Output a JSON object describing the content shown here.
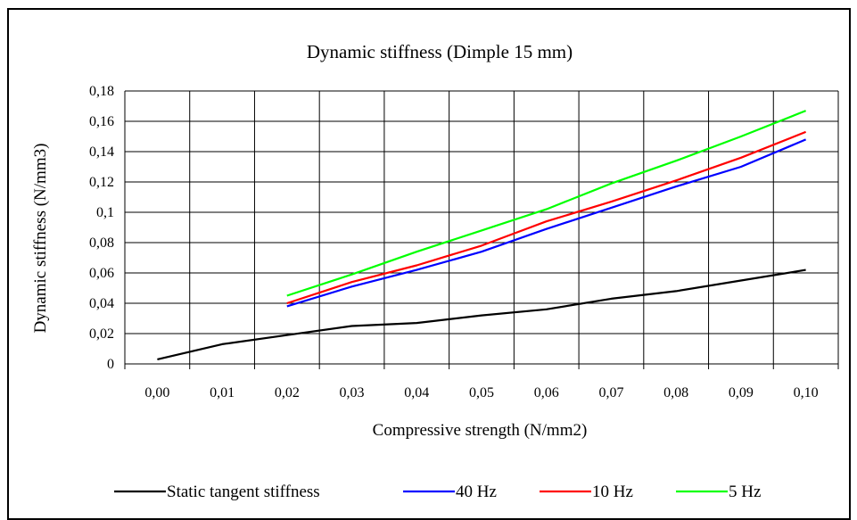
{
  "chart_data": {
    "type": "line",
    "title": "Dynamic stiffness (Dimple 15 mm)",
    "xlabel": "Compressive strength (N/mm2)",
    "ylabel": "Dynamic stiffness (N/mm3)",
    "x_categories": [
      "0,00",
      "0,01",
      "0,02",
      "0,03",
      "0,04",
      "0,05",
      "0,06",
      "0,07",
      "0,08",
      "0,09",
      "0,10"
    ],
    "x_values": [
      0.0,
      0.01,
      0.02,
      0.03,
      0.04,
      0.05,
      0.06,
      0.07,
      0.08,
      0.09,
      0.1
    ],
    "y_ticks": [
      "0",
      "0,02",
      "0,04",
      "0,06",
      "0,08",
      "0,1",
      "0,12",
      "0,14",
      "0,16",
      "0,18"
    ],
    "ylim": [
      0,
      0.18
    ],
    "grid": true,
    "legend_position": "bottom",
    "series": [
      {
        "name": "Static tangent stiffness",
        "color": "#000000",
        "x": [
          0.0,
          0.01,
          0.02,
          0.03,
          0.04,
          0.05,
          0.06,
          0.07,
          0.08,
          0.09,
          0.1
        ],
        "y": [
          0.003,
          0.013,
          0.019,
          0.025,
          0.027,
          0.032,
          0.036,
          0.043,
          0.048,
          0.055,
          0.062
        ]
      },
      {
        "name": "40 Hz",
        "color": "#0000ff",
        "x": [
          0.02,
          0.03,
          0.04,
          0.05,
          0.06,
          0.07,
          0.08,
          0.09,
          0.1
        ],
        "y": [
          0.038,
          0.051,
          0.062,
          0.074,
          0.089,
          0.103,
          0.117,
          0.13,
          0.148
        ]
      },
      {
        "name": "10 Hz",
        "color": "#ff0000",
        "x": [
          0.02,
          0.03,
          0.04,
          0.05,
          0.06,
          0.07,
          0.08,
          0.09,
          0.1
        ],
        "y": [
          0.04,
          0.054,
          0.065,
          0.078,
          0.094,
          0.107,
          0.121,
          0.136,
          0.153
        ]
      },
      {
        "name": "5 Hz",
        "color": "#00ff00",
        "x": [
          0.02,
          0.03,
          0.04,
          0.05,
          0.06,
          0.07,
          0.08,
          0.09,
          0.1
        ],
        "y": [
          0.045,
          0.059,
          0.074,
          0.088,
          0.102,
          0.119,
          0.134,
          0.15,
          0.167
        ]
      }
    ]
  }
}
